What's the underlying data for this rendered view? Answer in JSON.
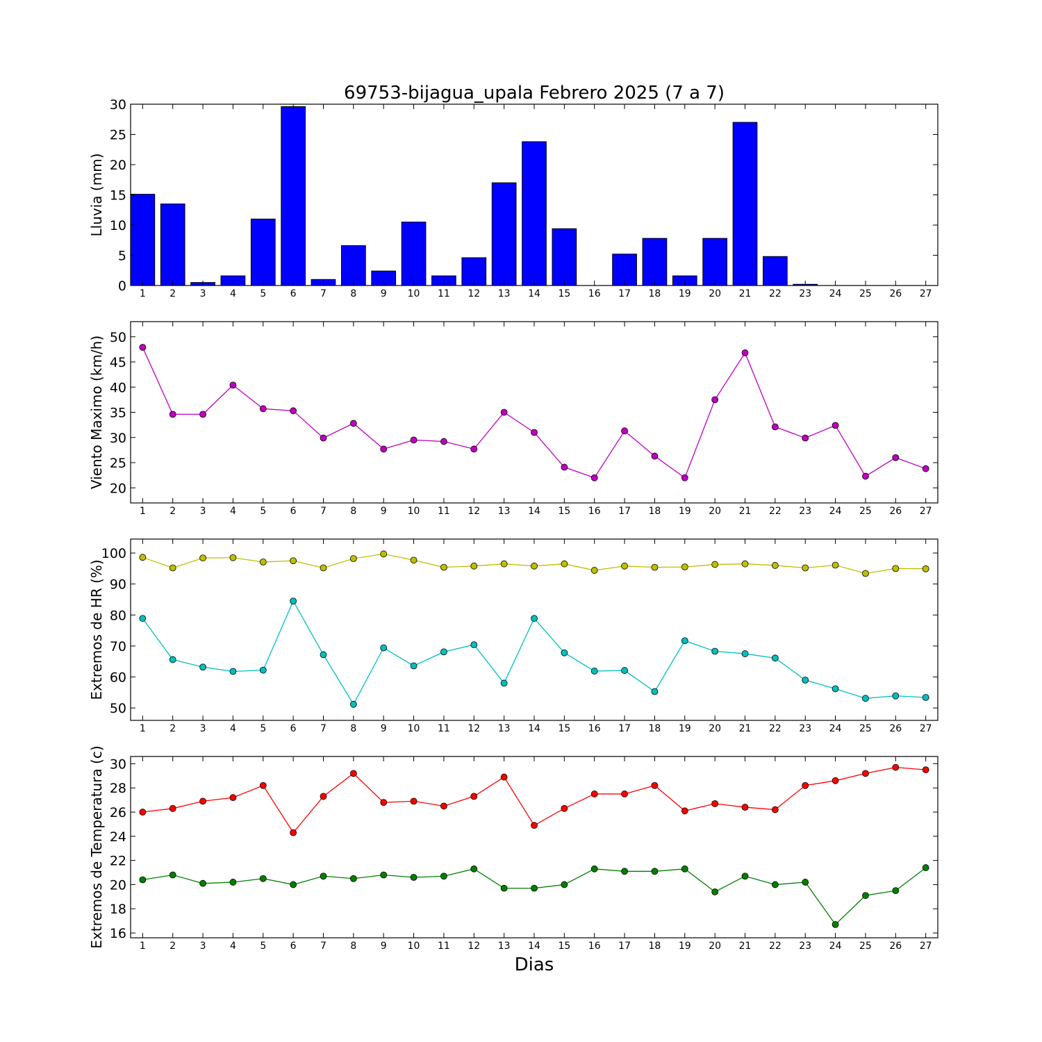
{
  "chart_data": [
    {
      "type": "bar",
      "title": "69753-bijagua_upala Febrero 2025  (7 a 7)",
      "ylabel": "Lluvia (mm)",
      "xlabel": "",
      "ylim": [
        0,
        30
      ],
      "yticks": [
        0,
        5,
        10,
        15,
        20,
        25,
        30
      ],
      "categories": [
        "1",
        "2",
        "3",
        "4",
        "5",
        "6",
        "7",
        "8",
        "9",
        "10",
        "11",
        "12",
        "13",
        "14",
        "15",
        "16",
        "17",
        "18",
        "19",
        "20",
        "21",
        "22",
        "23",
        "24",
        "25",
        "26",
        "27"
      ],
      "series": [
        {
          "color": "#0000ff",
          "values": [
            15.1,
            13.5,
            0.5,
            1.6,
            11.0,
            29.6,
            1.0,
            6.6,
            2.4,
            10.5,
            1.6,
            4.6,
            17.0,
            23.8,
            9.4,
            0.0,
            5.2,
            7.8,
            1.6,
            7.8,
            27.0,
            4.8,
            0.2,
            0.0,
            0.0,
            0.0,
            0.0
          ]
        }
      ],
      "grid": false
    },
    {
      "type": "line",
      "ylabel": "Viento Maximo (km/h)",
      "ylim": [
        17,
        53
      ],
      "yticks": [
        20,
        25,
        30,
        35,
        40,
        45,
        50
      ],
      "categories": [
        "1",
        "2",
        "3",
        "4",
        "5",
        "6",
        "7",
        "8",
        "9",
        "10",
        "11",
        "12",
        "13",
        "14",
        "15",
        "16",
        "17",
        "18",
        "19",
        "20",
        "21",
        "22",
        "23",
        "24",
        "25",
        "26",
        "27"
      ],
      "series": [
        {
          "color": "#bf00bf",
          "values": [
            47.9,
            34.6,
            34.6,
            40.4,
            35.7,
            35.3,
            29.9,
            32.8,
            27.7,
            29.5,
            29.2,
            27.7,
            35.0,
            31.0,
            24.1,
            22.0,
            31.3,
            26.3,
            22.0,
            37.5,
            46.8,
            32.1,
            29.9,
            32.4,
            22.3,
            26.0,
            23.8
          ]
        }
      ],
      "grid": false
    },
    {
      "type": "line",
      "ylabel": "Extremos de HR (%)",
      "ylim": [
        46,
        104.5
      ],
      "yticks": [
        50,
        60,
        70,
        80,
        90,
        100
      ],
      "categories": [
        "1",
        "2",
        "3",
        "4",
        "5",
        "6",
        "7",
        "8",
        "9",
        "10",
        "11",
        "12",
        "13",
        "14",
        "15",
        "16",
        "17",
        "18",
        "19",
        "20",
        "21",
        "22",
        "23",
        "24",
        "25",
        "26",
        "27"
      ],
      "series": [
        {
          "color": "#bfbf00",
          "values": [
            98.6,
            95.2,
            98.4,
            98.5,
            97.1,
            97.5,
            95.2,
            98.2,
            99.7,
            97.7,
            95.4,
            95.8,
            96.5,
            95.8,
            96.5,
            94.4,
            95.8,
            95.4,
            95.5,
            96.3,
            96.5,
            96.0,
            95.2,
            96.1,
            93.4,
            95.0,
            94.9
          ]
        },
        {
          "color": "#00bfbf",
          "values": [
            78.9,
            65.6,
            63.2,
            61.8,
            62.2,
            84.5,
            67.2,
            51.2,
            69.4,
            63.6,
            68.1,
            70.4,
            58.0,
            78.9,
            67.8,
            61.9,
            62.1,
            55.3,
            71.7,
            68.3,
            67.5,
            66.1,
            59.0,
            56.2,
            53.1,
            53.9,
            53.4
          ]
        }
      ],
      "grid": false
    },
    {
      "type": "line",
      "ylabel": "Extremos de Temperatura (c)",
      "xlabel": "Dias",
      "ylim": [
        15.6,
        30.6
      ],
      "yticks": [
        16,
        18,
        20,
        22,
        24,
        26,
        28,
        30
      ],
      "categories": [
        "1",
        "2",
        "3",
        "4",
        "5",
        "6",
        "7",
        "8",
        "9",
        "10",
        "11",
        "12",
        "13",
        "14",
        "15",
        "16",
        "17",
        "18",
        "19",
        "20",
        "21",
        "22",
        "23",
        "24",
        "25",
        "26",
        "27"
      ],
      "series": [
        {
          "color": "#ff0000",
          "values": [
            26.0,
            26.3,
            26.9,
            27.2,
            28.2,
            24.3,
            27.3,
            29.2,
            26.8,
            26.9,
            26.5,
            27.3,
            28.9,
            24.9,
            26.3,
            27.5,
            27.5,
            28.2,
            26.1,
            26.7,
            26.4,
            26.2,
            28.2,
            28.6,
            29.2,
            29.7,
            29.5
          ]
        },
        {
          "color": "#008000",
          "values": [
            20.4,
            20.8,
            20.1,
            20.2,
            20.5,
            20.0,
            20.7,
            20.5,
            20.8,
            20.6,
            20.7,
            21.3,
            19.7,
            19.7,
            20.0,
            21.3,
            21.1,
            21.1,
            21.3,
            19.4,
            20.7,
            20.0,
            20.2,
            16.7,
            19.1,
            19.5,
            21.4
          ]
        }
      ],
      "grid": false
    }
  ]
}
